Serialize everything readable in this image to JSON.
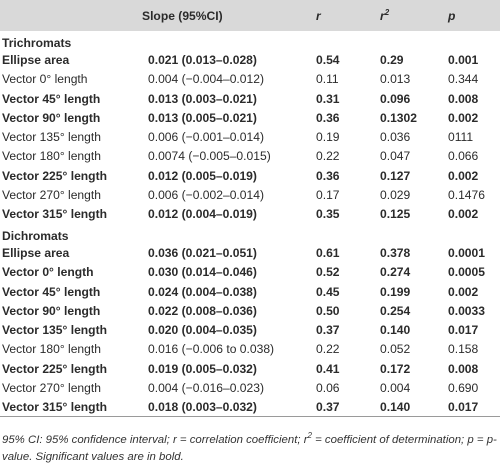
{
  "header": {
    "c0": "",
    "slope": "Slope (95%CI)",
    "r": "r",
    "r2_base": "r",
    "r2_sup": "2",
    "p": "p"
  },
  "groups": [
    {
      "name": "Trichromats",
      "rows": [
        {
          "label": "Ellipse area",
          "slope": "0.021 (0.013–0.028)",
          "r": "0.54",
          "r2": "0.29",
          "p": "0.001",
          "bold": true
        },
        {
          "label": "Vector 0° length",
          "slope": "0.004 (−0.004–0.012)",
          "r": "0.11",
          "r2": "0.013",
          "p": "0.344",
          "bold": false
        },
        {
          "label": "Vector 45° length",
          "slope": "0.013 (0.003–0.021)",
          "r": "0.31",
          "r2": "0.096",
          "p": "0.008",
          "bold": true
        },
        {
          "label": "Vector 90° length",
          "slope": "0.013 (0.005–0.021)",
          "r": "0.36",
          "r2": "0.1302",
          "p": "0.002",
          "bold": true
        },
        {
          "label": "Vector 135° length",
          "slope": "0.006 (−0.001–0.014)",
          "r": "0.19",
          "r2": "0.036",
          "p": "0111",
          "bold": false
        },
        {
          "label": "Vector 180° length",
          "slope": "0.0074 (−0.005–0.015)",
          "r": "0.22",
          "r2": "0.047",
          "p": "0.066",
          "bold": false
        },
        {
          "label": "Vector 225° length",
          "slope": "0.012 (0.005–0.019)",
          "r": "0.36",
          "r2": "0.127",
          "p": "0.002",
          "bold": true
        },
        {
          "label": "Vector 270° length",
          "slope": "0.006 (−0.002–0.014)",
          "r": "0.17",
          "r2": "0.029",
          "p": "0.1476",
          "bold": false
        },
        {
          "label": "Vector 315° length",
          "slope": "0.012 (0.004–0.019)",
          "r": "0.35",
          "r2": "0.125",
          "p": "0.002",
          "bold": true
        }
      ]
    },
    {
      "name": "Dichromats",
      "rows": [
        {
          "label": "Ellipse area",
          "slope": "0.036 (0.021–0.051)",
          "r": "0.61",
          "r2": "0.378",
          "p": "0.0001",
          "bold": true
        },
        {
          "label": "Vector 0° length",
          "slope": "0.030 (0.014–0.046)",
          "r": "0.52",
          "r2": "0.274",
          "p": "0.0005",
          "bold": true
        },
        {
          "label": "Vector 45° length",
          "slope": "0.024 (0.004–0.038)",
          "r": "0.45",
          "r2": "0.199",
          "p": "0.002",
          "bold": true
        },
        {
          "label": "Vector 90° length",
          "slope": "0.022 (0.008–0.036)",
          "r": "0.50",
          "r2": "0.254",
          "p": "0.0033",
          "bold": true
        },
        {
          "label": "Vector 135° length",
          "slope": "0.020 (0.004–0.035)",
          "r": "0.37",
          "r2": "0.140",
          "p": "0.017",
          "bold": true
        },
        {
          "label": "Vector 180° length",
          "slope": "0.016 (−0.006 to 0.038)",
          "r": "0.22",
          "r2": "0.052",
          "p": "0.158",
          "bold": false
        },
        {
          "label": "Vector 225° length",
          "slope": "0.019 (0.005–0.032)",
          "r": "0.41",
          "r2": "0.172",
          "p": "0.008",
          "bold": true
        },
        {
          "label": "Vector 270° length",
          "slope": "0.004 (−0.016–0.023)",
          "r": "0.06",
          "r2": "0.004",
          "p": "0.690",
          "bold": false
        },
        {
          "label": "Vector 315° length",
          "slope": "0.018 (0.003–0.032)",
          "r": "0.37",
          "r2": "0.140",
          "p": "0.017",
          "bold": true
        }
      ]
    }
  ],
  "footnote": {
    "part1": "95% CI: 95% confidence interval; r = correlation coefficient; r",
    "sup": "2",
    "part2": " = coefficient of determination; p = p-value. Significant values are in bold."
  }
}
